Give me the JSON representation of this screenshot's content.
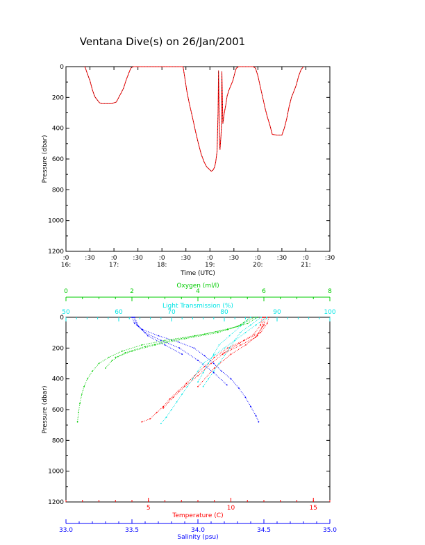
{
  "title": "Ventana Dive(s) on 26/Jan/2001",
  "colors": {
    "axes": "#000000",
    "pressure_trace": "#000000",
    "depth_series": "#ff0000",
    "temperature": "#ff0000",
    "salinity": "#0000ff",
    "oxygen": "#00cc00",
    "transmission": "#00e5e5"
  },
  "chart_data": [
    {
      "type": "line",
      "xlabel": "Time (UTC)",
      "ylabel": "Pressure (dbar)",
      "y_inverted": true,
      "ylim": [
        0,
        1200
      ],
      "yticks": [
        "0",
        "200",
        "400",
        "600",
        "800",
        "1000",
        "1200"
      ],
      "xticks_minutes": [
        ":0",
        ":30",
        ":0",
        ":30",
        ":0",
        ":30",
        ":0",
        ":30",
        ":0",
        ":30",
        ":0",
        ":30"
      ],
      "xticks_hours": [
        "16:",
        "17:",
        "18:",
        "19:",
        "20:",
        "21:"
      ],
      "x_unit": "hours (UTC)",
      "xlim": [
        16.0,
        21.5
      ],
      "series": [
        {
          "x": [
            16.38,
            16.4,
            16.45,
            16.5,
            16.55,
            16.6,
            16.65,
            16.7,
            16.75,
            16.85,
            16.95,
            17.05,
            17.1,
            17.15,
            17.2,
            17.25,
            17.3,
            17.35,
            17.4
          ],
          "y": [
            0,
            3,
            50,
            90,
            150,
            195,
            215,
            235,
            240,
            240,
            240,
            230,
            200,
            170,
            140,
            90,
            50,
            10,
            0
          ]
        },
        {
          "x": [
            17.4,
            17.6,
            17.8,
            18.0,
            18.25,
            18.44
          ],
          "y": [
            0,
            0,
            0,
            0,
            0,
            0
          ]
        },
        {
          "x": [
            18.44,
            18.47,
            18.52,
            18.57,
            18.63,
            18.7,
            18.76,
            18.82,
            18.88,
            18.93,
            18.98,
            19.03,
            19.07,
            19.1,
            19.12,
            19.15,
            19.17,
            19.18,
            19.2,
            19.21,
            19.23,
            19.24,
            19.25,
            19.27,
            19.3,
            19.33,
            19.36,
            19.4,
            19.44,
            19.48,
            19.52,
            19.55,
            19.6,
            19.75,
            19.9
          ],
          "y": [
            0,
            60,
            160,
            240,
            320,
            420,
            500,
            570,
            620,
            650,
            665,
            680,
            670,
            650,
            620,
            550,
            300,
            25,
            480,
            540,
            450,
            380,
            30,
            370,
            300,
            250,
            190,
            150,
            120,
            90,
            40,
            10,
            0,
            0,
            0
          ]
        },
        {
          "x": [
            19.9,
            19.95,
            20.0,
            20.05,
            20.1,
            20.15,
            20.2,
            20.25,
            20.3,
            20.4,
            20.5,
            20.55,
            20.6,
            20.65,
            20.7,
            20.75,
            20.8,
            20.85,
            20.9,
            20.95
          ],
          "y": [
            0,
            10,
            60,
            130,
            200,
            270,
            330,
            380,
            440,
            445,
            445,
            400,
            340,
            260,
            200,
            160,
            120,
            60,
            20,
            0
          ]
        }
      ]
    },
    {
      "type": "scatter",
      "ylabel": "Pressure (dbar)",
      "y_inverted": true,
      "ylim": [
        0,
        1200
      ],
      "yticks": [
        "0",
        "200",
        "400",
        "600",
        "800",
        "1000",
        "1200"
      ],
      "axes": [
        {
          "label": "Oxygen (ml/l)",
          "position": "top",
          "xlim": [
            0,
            8
          ],
          "ticks": [
            "0",
            "2",
            "4",
            "6",
            "8"
          ],
          "color_key": "oxygen"
        },
        {
          "label": "Light Transmission (%)",
          "position": "top",
          "xlim": [
            50,
            100
          ],
          "ticks": [
            "50",
            "60",
            "70",
            "80",
            "90",
            "100"
          ],
          "color_key": "transmission"
        },
        {
          "label": "Temperature (C)",
          "position": "bottom",
          "xlim": [
            0,
            16
          ],
          "ticks": [
            "5",
            "10",
            "15"
          ],
          "color_key": "temperature"
        },
        {
          "label": "Salinity (psu)",
          "position": "bottom",
          "xlim": [
            33.0,
            35.0
          ],
          "ticks": [
            "33.0",
            "33.5",
            "34.0",
            "34.5",
            "35.0"
          ],
          "color_key": "salinity"
        }
      ],
      "series": [
        {
          "axis": 2,
          "color_key": "temperature",
          "profiles": [
            {
              "x": [
                12.3,
                12.2,
                11.8,
                10.8,
                9.8,
                9.0,
                8.4,
                7.8,
                7.3,
                6.8,
                6.3,
                5.9,
                5.5,
                5.1,
                4.6
              ],
              "y": [
                0,
                40,
                100,
                150,
                200,
                260,
                320,
                380,
                430,
                480,
                530,
                580,
                620,
                660,
                680
              ]
            },
            {
              "x": [
                12.0,
                11.9,
                11.5,
                10.6,
                9.5
              ],
              "y": [
                0,
                60,
                130,
                180,
                240
              ]
            },
            {
              "x": [
                12.1,
                12.0,
                11.6,
                10.9,
                10.0,
                9.0,
                8.0
              ],
              "y": [
                0,
                50,
                120,
                180,
                240,
                330,
                450
              ]
            },
            {
              "x": [
                11.9,
                11.8,
                11.4,
                10.5,
                9.6,
                8.8,
                8.0,
                7.2,
                6.5,
                5.9
              ],
              "y": [
                0,
                50,
                110,
                170,
                230,
                300,
                380,
                450,
                520,
                590
              ]
            }
          ]
        },
        {
          "axis": 3,
          "color_key": "salinity",
          "profiles": [
            {
              "x": [
                33.5,
                33.52,
                33.58,
                33.7,
                33.85,
                33.97,
                34.05,
                34.12,
                34.18,
                34.25,
                34.31,
                34.36,
                34.4,
                34.44,
                34.46
              ],
              "y": [
                0,
                40,
                80,
                120,
                160,
                200,
                250,
                300,
                350,
                400,
                460,
                520,
                580,
                640,
                680
              ]
            },
            {
              "x": [
                33.52,
                33.55,
                33.62,
                33.75,
                33.88
              ],
              "y": [
                0,
                60,
                120,
                180,
                240
              ]
            },
            {
              "x": [
                33.51,
                33.54,
                33.6,
                33.72,
                33.86,
                34.0,
                34.12,
                34.22
              ],
              "y": [
                0,
                50,
                100,
                150,
                200,
                280,
                360,
                440
              ]
            }
          ]
        },
        {
          "axis": 0,
          "color_key": "oxygen",
          "profiles": [
            {
              "x": [
                5.8,
                5.5,
                4.9,
                3.9,
                3.0,
                2.3,
                1.7,
                1.3,
                1.0,
                0.8,
                0.65,
                0.55,
                0.48,
                0.42,
                0.38,
                0.35
              ],
              "y": [
                0,
                40,
                80,
                120,
                150,
                180,
                220,
                260,
                300,
                350,
                400,
                450,
                500,
                560,
                620,
                680
              ]
            },
            {
              "x": [
                5.7,
                5.3,
                4.6,
                3.6,
                2.7,
                2.0,
                1.5
              ],
              "y": [
                0,
                50,
                100,
                140,
                180,
                220,
                260
              ]
            },
            {
              "x": [
                5.6,
                5.2,
                4.2,
                3.2,
                2.4,
                1.8,
                1.4,
                1.2
              ],
              "y": [
                0,
                60,
                110,
                150,
                190,
                230,
                280,
                330
              ]
            }
          ]
        },
        {
          "axis": 1,
          "color_key": "transmission",
          "profiles": [
            {
              "x": [
                88,
                86,
                84,
                82,
                80,
                78,
                76,
                75,
                74,
                73,
                72,
                71,
                70,
                69,
                68
              ],
              "y": [
                0,
                50,
                100,
                150,
                200,
                250,
                300,
                350,
                400,
                450,
                500,
                550,
                600,
                650,
                690
              ]
            },
            {
              "x": [
                85,
                83,
                81,
                79,
                78,
                77,
                76,
                75
              ],
              "y": [
                0,
                60,
                120,
                180,
                240,
                300,
                360,
                420
              ]
            },
            {
              "x": [
                87,
                85,
                83,
                82,
                81,
                80,
                79,
                78,
                77,
                76
              ],
              "y": [
                0,
                50,
                100,
                150,
                200,
                250,
                300,
                350,
                400,
                450
              ]
            }
          ]
        }
      ]
    }
  ]
}
